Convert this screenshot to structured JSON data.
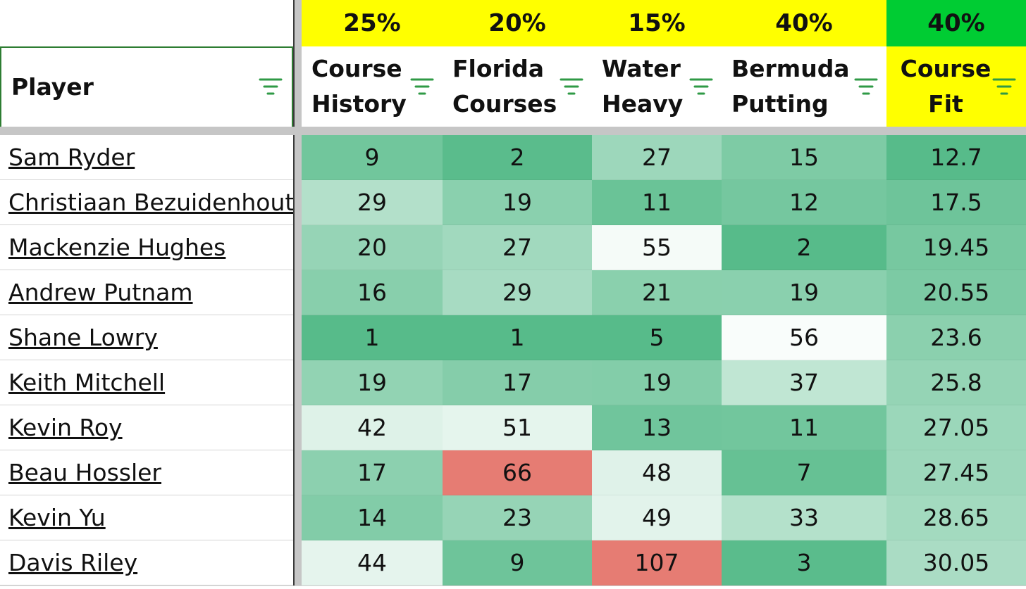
{
  "weights": {
    "course_history": "25%",
    "florida_courses": "20%",
    "water_heavy": "15%",
    "bermuda_putting": "40%",
    "course_fit": "40%"
  },
  "headers": {
    "player": "Player",
    "course_history": [
      "Course",
      "History"
    ],
    "florida_courses": [
      "Florida",
      "Courses"
    ],
    "water_heavy": [
      "Water",
      "Heavy"
    ],
    "bermuda_putting": [
      "Bermuda",
      "Putting"
    ],
    "course_fit": [
      "Course",
      "Fit"
    ]
  },
  "icons": {
    "filter": "filter-icon"
  },
  "colors": {
    "weight_highlight": "#ffff00",
    "course_fit_weight": "#00cc33",
    "best_green": "#57bb8a",
    "neutral_white": "#ffffff",
    "worst_red": "#e67c73"
  },
  "rows": [
    {
      "player": "Sam Ryder",
      "course_history": "9",
      "florida_courses": "2",
      "water_heavy": "27",
      "bermuda_putting": "15",
      "course_fit": "12.7"
    },
    {
      "player": "Christiaan Bezuidenhout",
      "course_history": "29",
      "florida_courses": "19",
      "water_heavy": "11",
      "bermuda_putting": "12",
      "course_fit": "17.5"
    },
    {
      "player": "Mackenzie Hughes",
      "course_history": "20",
      "florida_courses": "27",
      "water_heavy": "55",
      "bermuda_putting": "2",
      "course_fit": "19.45"
    },
    {
      "player": "Andrew Putnam",
      "course_history": "16",
      "florida_courses": "29",
      "water_heavy": "21",
      "bermuda_putting": "19",
      "course_fit": "20.55"
    },
    {
      "player": "Shane Lowry",
      "course_history": "1",
      "florida_courses": "1",
      "water_heavy": "5",
      "bermuda_putting": "56",
      "course_fit": "23.6"
    },
    {
      "player": "Keith Mitchell",
      "course_history": "19",
      "florida_courses": "17",
      "water_heavy": "19",
      "bermuda_putting": "37",
      "course_fit": "25.8"
    },
    {
      "player": "Kevin Roy",
      "course_history": "42",
      "florida_courses": "51",
      "water_heavy": "13",
      "bermuda_putting": "11",
      "course_fit": "27.05"
    },
    {
      "player": "Beau Hossler",
      "course_history": "17",
      "florida_courses": "66",
      "water_heavy": "48",
      "bermuda_putting": "7",
      "course_fit": "27.45"
    },
    {
      "player": "Kevin Yu",
      "course_history": "14",
      "florida_courses": "23",
      "water_heavy": "49",
      "bermuda_putting": "33",
      "course_fit": "28.65"
    },
    {
      "player": "Davis Riley",
      "course_history": "44",
      "florida_courses": "9",
      "water_heavy": "107",
      "bermuda_putting": "3",
      "course_fit": "30.05"
    }
  ]
}
